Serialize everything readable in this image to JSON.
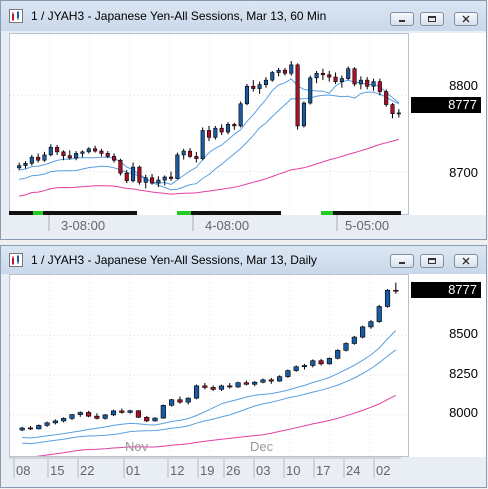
{
  "windows": [
    {
      "title": "1 / JYAH3 - Japanese Yen-All Sessions, Mar 13, 60 Min",
      "buttons": [
        "minimize",
        "restore",
        "close"
      ],
      "price_labels": [
        "8800",
        "8700"
      ],
      "last_price": "8777",
      "time_labels": [
        "3-08:00",
        "4-08:00",
        "5-05:00"
      ]
    },
    {
      "title": "1 / JYAH3 - Japanese Yen-All Sessions, Mar 13, Daily",
      "buttons": [
        "minimize",
        "restore",
        "close"
      ],
      "price_labels": [
        "8500",
        "8250",
        "8000"
      ],
      "last_price": "8777",
      "month_labels": [
        "Nov",
        "Dec"
      ],
      "date_labels": [
        "08",
        "15",
        "22",
        "01",
        "12",
        "19",
        "26",
        "03",
        "10",
        "17",
        "24",
        "02"
      ]
    }
  ],
  "chart_data": [
    {
      "type": "candlestick",
      "title": "1 / JYAH3 - Japanese Yen-All Sessions, Mar 13, 60 Min",
      "xlabel": "",
      "ylabel": "",
      "ylim": [
        8655,
        8870
      ],
      "y_ticks": [
        8700,
        8800
      ],
      "x_tick_labels": [
        "3-08:00",
        "4-08:00",
        "5-05:00"
      ],
      "last": 8777,
      "up_color": "#1a5aa0",
      "down_color": "#a8102a",
      "ma_fast_color": "#5aa0e0",
      "ma_slow_color": "#e040a0",
      "candles": [
        [
          8705,
          8712,
          8702,
          8708
        ],
        [
          8708,
          8714,
          8704,
          8711
        ],
        [
          8711,
          8722,
          8708,
          8719
        ],
        [
          8719,
          8724,
          8712,
          8715
        ],
        [
          8715,
          8726,
          8713,
          8722
        ],
        [
          8722,
          8736,
          8720,
          8732
        ],
        [
          8732,
          8735,
          8722,
          8726
        ],
        [
          8726,
          8728,
          8715,
          8721
        ],
        [
          8721,
          8728,
          8716,
          8718
        ],
        [
          8718,
          8727,
          8715,
          8724
        ],
        [
          8724,
          8728,
          8719,
          8726
        ],
        [
          8726,
          8732,
          8724,
          8730
        ],
        [
          8730,
          8734,
          8725,
          8727
        ],
        [
          8727,
          8730,
          8720,
          8724
        ],
        [
          8724,
          8727,
          8718,
          8720
        ],
        [
          8720,
          8724,
          8712,
          8715
        ],
        [
          8715,
          8717,
          8695,
          8698
        ],
        [
          8698,
          8702,
          8685,
          8688
        ],
        [
          8688,
          8712,
          8686,
          8706
        ],
        [
          8706,
          8708,
          8683,
          8686
        ],
        [
          8686,
          8696,
          8678,
          8692
        ],
        [
          8692,
          8697,
          8683,
          8685
        ],
        [
          8685,
          8694,
          8680,
          8689
        ],
        [
          8689,
          8695,
          8682,
          8693
        ],
        [
          8693,
          8700,
          8688,
          8691
        ],
        [
          8691,
          8725,
          8690,
          8722
        ],
        [
          8722,
          8730,
          8716,
          8727
        ],
        [
          8727,
          8731,
          8718,
          8720
        ],
        [
          8720,
          8726,
          8712,
          8717
        ],
        [
          8717,
          8758,
          8715,
          8754
        ],
        [
          8754,
          8760,
          8740,
          8745
        ],
        [
          8745,
          8760,
          8742,
          8757
        ],
        [
          8757,
          8762,
          8748,
          8752
        ],
        [
          8752,
          8765,
          8749,
          8762
        ],
        [
          8762,
          8764,
          8755,
          8760
        ],
        [
          8760,
          8792,
          8758,
          8789
        ],
        [
          8789,
          8815,
          8787,
          8812
        ],
        [
          8812,
          8820,
          8805,
          8809
        ],
        [
          8809,
          8818,
          8802,
          8814
        ],
        [
          8814,
          8824,
          8810,
          8820
        ],
        [
          8820,
          8832,
          8818,
          8830
        ],
        [
          8830,
          8836,
          8825,
          8833
        ],
        [
          8833,
          8836,
          8826,
          8829
        ],
        [
          8829,
          8845,
          8826,
          8840
        ],
        [
          8840,
          8842,
          8755,
          8760
        ],
        [
          8760,
          8792,
          8758,
          8790
        ],
        [
          8790,
          8826,
          8788,
          8823
        ],
        [
          8823,
          8832,
          8816,
          8829
        ],
        [
          8829,
          8835,
          8820,
          8827
        ],
        [
          8827,
          8832,
          8818,
          8824
        ],
        [
          8824,
          8830,
          8815,
          8818
        ],
        [
          8818,
          8826,
          8810,
          8822
        ],
        [
          8822,
          8838,
          8820,
          8835
        ],
        [
          8835,
          8837,
          8812,
          8815
        ],
        [
          8815,
          8825,
          8808,
          8820
        ],
        [
          8820,
          8824,
          8808,
          8812
        ],
        [
          8812,
          8822,
          8806,
          8818
        ],
        [
          8818,
          8822,
          8800,
          8805
        ],
        [
          8805,
          8808,
          8785,
          8788
        ],
        [
          8788,
          8790,
          8770,
          8776
        ],
        [
          8776,
          8782,
          8771,
          8777
        ]
      ]
    },
    {
      "type": "candlestick",
      "title": "1 / JYAH3 - Japanese Yen-All Sessions, Mar 13, Daily",
      "xlabel": "",
      "ylabel": "",
      "ylim": [
        7880,
        8840
      ],
      "y_ticks": [
        8000,
        8250,
        8500
      ],
      "x_tick_labels": [
        "08",
        "15",
        "22",
        "01",
        "12",
        "19",
        "26",
        "03",
        "10",
        "17",
        "24",
        "02"
      ],
      "month_labels": [
        "Nov",
        "Dec"
      ],
      "last": 8777,
      "up_color": "#1a5aa0",
      "down_color": "#a8102a",
      "ma_fast_color": "#5aa0e0",
      "ma_slow_color": "#e040a0",
      "candles": [
        [
          7905,
          7925,
          7898,
          7918
        ],
        [
          7918,
          7930,
          7905,
          7912
        ],
        [
          7912,
          7940,
          7908,
          7934
        ],
        [
          7934,
          7958,
          7925,
          7950
        ],
        [
          7950,
          7972,
          7940,
          7962
        ],
        [
          7962,
          7985,
          7952,
          7978
        ],
        [
          7978,
          8005,
          7968,
          8002
        ],
        [
          8002,
          8022,
          7988,
          8015
        ],
        [
          8015,
          8025,
          7985,
          7992
        ],
        [
          7992,
          8010,
          7972,
          7978
        ],
        [
          7978,
          8005,
          7970,
          8000
        ],
        [
          8000,
          8032,
          7992,
          8025
        ],
        [
          8025,
          8040,
          8008,
          8015
        ],
        [
          8015,
          8032,
          8008,
          8026
        ],
        [
          8026,
          8030,
          7980,
          7985
        ],
        [
          7985,
          7992,
          7955,
          7962
        ],
        [
          7962,
          7985,
          7958,
          7980
        ],
        [
          7980,
          8065,
          7975,
          8060
        ],
        [
          8060,
          8100,
          8052,
          8095
        ],
        [
          8095,
          8115,
          8070,
          8080
        ],
        [
          8080,
          8110,
          8065,
          8105
        ],
        [
          8105,
          8190,
          8098,
          8182
        ],
        [
          8182,
          8200,
          8160,
          8172
        ],
        [
          8172,
          8185,
          8150,
          8160
        ],
        [
          8160,
          8190,
          8150,
          8182
        ],
        [
          8182,
          8200,
          8165,
          8175
        ],
        [
          8175,
          8208,
          8170,
          8202
        ],
        [
          8202,
          8215,
          8185,
          8192
        ],
        [
          8192,
          8212,
          8180,
          8205
        ],
        [
          8205,
          8228,
          8198,
          8220
        ],
        [
          8220,
          8232,
          8195,
          8212
        ],
        [
          8212,
          8248,
          8208,
          8240
        ],
        [
          8240,
          8285,
          8232,
          8278
        ],
        [
          8278,
          8310,
          8270,
          8302
        ],
        [
          8302,
          8320,
          8285,
          8310
        ],
        [
          8310,
          8348,
          8298,
          8340
        ],
        [
          8340,
          8352,
          8310,
          8320
        ],
        [
          8320,
          8360,
          8315,
          8355
        ],
        [
          8355,
          8412,
          8348,
          8405
        ],
        [
          8405,
          8455,
          8398,
          8448
        ],
        [
          8448,
          8495,
          8440,
          8488
        ],
        [
          8488,
          8560,
          8480,
          8552
        ],
        [
          8552,
          8595,
          8540,
          8585
        ],
        [
          8585,
          8690,
          8578,
          8680
        ],
        [
          8680,
          8790,
          8672,
          8782
        ],
        [
          8782,
          8830,
          8760,
          8777
        ]
      ]
    }
  ]
}
